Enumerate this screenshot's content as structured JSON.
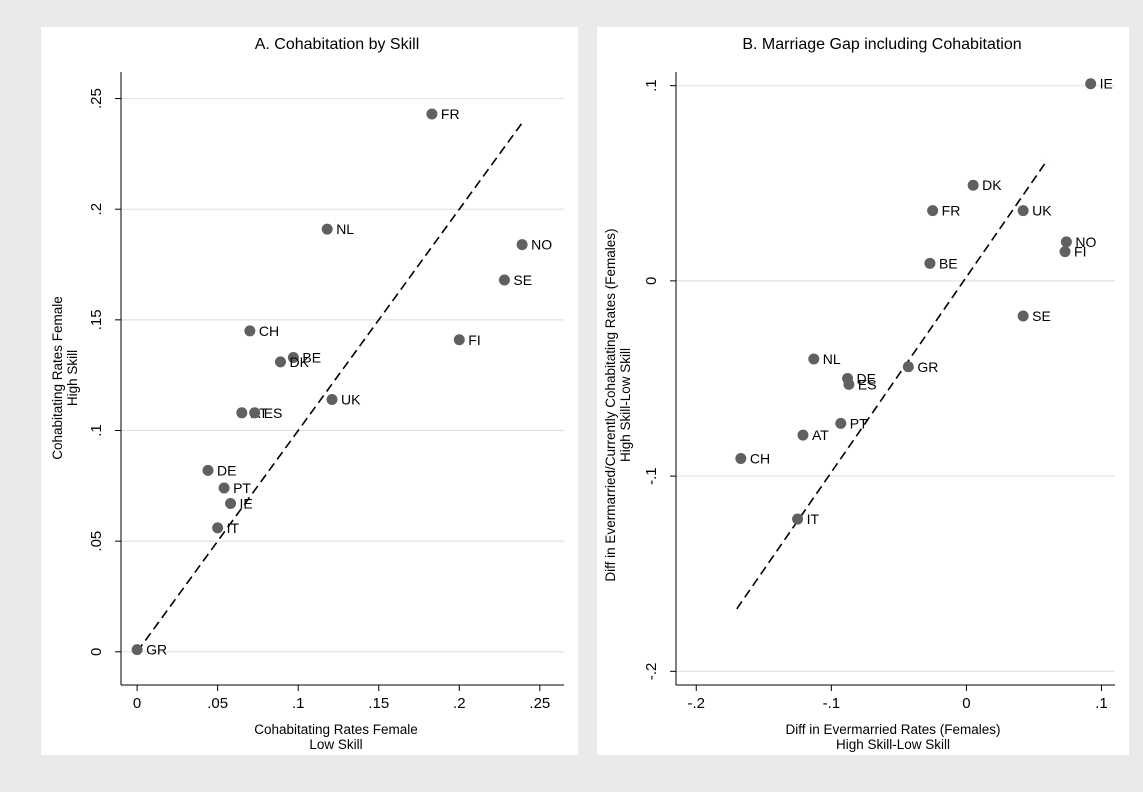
{
  "chart_data": [
    {
      "type": "scatter",
      "title": "A. Cohabitation by Skill",
      "xlabel": [
        "Cohabitating Rates Female",
        "Low Skill"
      ],
      "ylabel": [
        "Cohabitating Rates Female",
        "High Skill"
      ],
      "xlim": [
        -0.01,
        0.265
      ],
      "ylim": [
        -0.015,
        0.262
      ],
      "xticks": [
        0,
        0.05,
        0.1,
        0.15,
        0.2,
        0.25
      ],
      "xtick_labels": [
        "0",
        ".05",
        ".1",
        ".15",
        ".2",
        ".25"
      ],
      "yticks": [
        0,
        0.05,
        0.1,
        0.15,
        0.2,
        0.25
      ],
      "ytick_labels": [
        "0",
        ".05",
        ".1",
        ".15",
        ".2",
        ".25"
      ],
      "grid": "horizontal",
      "fit_line": {
        "x": [
          0,
          0.24
        ],
        "y": [
          0,
          0.24
        ],
        "style": "dashed"
      },
      "points": [
        {
          "label": "FR",
          "x": 0.183,
          "y": 0.243
        },
        {
          "label": "NL",
          "x": 0.118,
          "y": 0.191
        },
        {
          "label": "NO",
          "x": 0.239,
          "y": 0.184
        },
        {
          "label": "SE",
          "x": 0.228,
          "y": 0.168
        },
        {
          "label": "CH",
          "x": 0.07,
          "y": 0.145
        },
        {
          "label": "FI",
          "x": 0.2,
          "y": 0.141
        },
        {
          "label": "BE",
          "x": 0.097,
          "y": 0.133
        },
        {
          "label": "DK",
          "x": 0.089,
          "y": 0.131
        },
        {
          "label": "UK",
          "x": 0.121,
          "y": 0.114
        },
        {
          "label": "AT",
          "x": 0.065,
          "y": 0.108
        },
        {
          "label": "ES",
          "x": 0.073,
          "y": 0.108
        },
        {
          "label": "DE",
          "x": 0.044,
          "y": 0.082
        },
        {
          "label": "PT",
          "x": 0.054,
          "y": 0.074
        },
        {
          "label": "IE",
          "x": 0.058,
          "y": 0.067
        },
        {
          "label": "IT",
          "x": 0.05,
          "y": 0.056
        },
        {
          "label": "GR",
          "x": 0.0,
          "y": 0.001
        }
      ]
    },
    {
      "type": "scatter",
      "title": "B. Marriage Gap including Cohabitation",
      "xlabel": [
        "Diff in Evermarried Rates (Females)",
        "High Skill-Low Skill"
      ],
      "ylabel": [
        "Diff in Evermarried/Currently Cohabitating  Rates (Females)",
        "High Skill-Low Skill"
      ],
      "xlim": [
        -0.215,
        0.11
      ],
      "ylim": [
        -0.207,
        0.107
      ],
      "xticks": [
        -0.2,
        -0.1,
        0,
        0.1
      ],
      "xtick_labels": [
        "-.2",
        "-.1",
        "0",
        ".1"
      ],
      "yticks": [
        -0.2,
        -0.1,
        0,
        0.1
      ],
      "ytick_labels": [
        "-.2",
        "-.1",
        "0",
        ".1"
      ],
      "grid": "horizontal",
      "fit_line": {
        "x": [
          -0.17,
          0.06
        ],
        "y": [
          -0.168,
          0.062
        ],
        "style": "dashed"
      },
      "points": [
        {
          "label": "IE",
          "x": 0.092,
          "y": 0.101
        },
        {
          "label": "DK",
          "x": 0.005,
          "y": 0.049
        },
        {
          "label": "FR",
          "x": -0.025,
          "y": 0.036
        },
        {
          "label": "UK",
          "x": 0.042,
          "y": 0.036
        },
        {
          "label": "NO",
          "x": 0.074,
          "y": 0.02
        },
        {
          "label": "FI",
          "x": 0.073,
          "y": 0.015
        },
        {
          "label": "BE",
          "x": -0.027,
          "y": 0.009
        },
        {
          "label": "SE",
          "x": 0.042,
          "y": -0.018
        },
        {
          "label": "NL",
          "x": -0.113,
          "y": -0.04
        },
        {
          "label": "GR",
          "x": -0.043,
          "y": -0.044
        },
        {
          "label": "DE",
          "x": -0.088,
          "y": -0.05
        },
        {
          "label": "ES",
          "x": -0.087,
          "y": -0.053
        },
        {
          "label": "PT",
          "x": -0.093,
          "y": -0.073
        },
        {
          "label": "AT",
          "x": -0.121,
          "y": -0.079
        },
        {
          "label": "CH",
          "x": -0.167,
          "y": -0.091
        },
        {
          "label": "IT",
          "x": -0.125,
          "y": -0.122
        }
      ]
    }
  ],
  "colors": {
    "background": "#eaeaea",
    "plot_bg": "#ffffff",
    "grid": "#e2e2e2",
    "marker": "#606060",
    "axis": "#000000"
  }
}
